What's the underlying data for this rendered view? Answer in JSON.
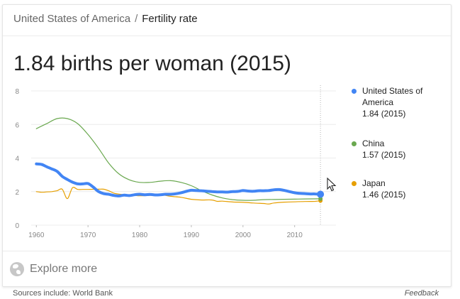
{
  "breadcrumb": {
    "country": "United States of America",
    "separator": "/",
    "topic": "Fertility rate"
  },
  "headline": "1.84 births per woman (2015)",
  "chart_data": {
    "type": "line",
    "title": "",
    "xlabel": "",
    "ylabel": "",
    "xlim": [
      1959,
      2018
    ],
    "ylim": [
      0,
      8
    ],
    "x_ticks": [
      "1960",
      "1970",
      "1980",
      "1990",
      "2000",
      "2010"
    ],
    "y_ticks": [
      "0",
      "2",
      "4",
      "6",
      "8"
    ],
    "grid": true,
    "legend_position": "right",
    "highlight_year": 2015,
    "series": [
      {
        "name": "United States of America",
        "latest": "1.84 (2015)",
        "color": "#4285f4",
        "x": [
          1960,
          1961,
          1962,
          1963,
          1964,
          1965,
          1966,
          1967,
          1968,
          1969,
          1970,
          1971,
          1972,
          1973,
          1974,
          1975,
          1976,
          1977,
          1978,
          1979,
          1980,
          1981,
          1982,
          1983,
          1984,
          1985,
          1986,
          1987,
          1988,
          1989,
          1990,
          1991,
          1992,
          1993,
          1994,
          1995,
          1996,
          1997,
          1998,
          1999,
          2000,
          2001,
          2002,
          2003,
          2004,
          2005,
          2006,
          2007,
          2008,
          2009,
          2010,
          2011,
          2012,
          2013,
          2014,
          2015
        ],
        "y": [
          3.65,
          3.62,
          3.48,
          3.35,
          3.21,
          2.91,
          2.72,
          2.56,
          2.46,
          2.46,
          2.48,
          2.27,
          2.01,
          1.88,
          1.84,
          1.77,
          1.74,
          1.79,
          1.76,
          1.81,
          1.84,
          1.81,
          1.83,
          1.8,
          1.81,
          1.84,
          1.84,
          1.87,
          1.93,
          2.01,
          2.08,
          2.06,
          2.05,
          2.02,
          2.0,
          1.98,
          1.98,
          1.97,
          2.0,
          2.01,
          2.06,
          2.03,
          2.02,
          2.05,
          2.05,
          2.06,
          2.11,
          2.12,
          2.07,
          2.0,
          1.93,
          1.89,
          1.88,
          1.86,
          1.86,
          1.84
        ]
      },
      {
        "name": "China",
        "latest": "1.57 (2015)",
        "color": "#6aa84f",
        "x": [
          1960,
          1962,
          1964,
          1966,
          1968,
          1970,
          1972,
          1974,
          1976,
          1978,
          1980,
          1982,
          1984,
          1986,
          1988,
          1990,
          1992,
          1994,
          1996,
          1998,
          2000,
          2002,
          2004,
          2006,
          2008,
          2010,
          2012,
          2015
        ],
        "y": [
          5.75,
          6.05,
          6.35,
          6.35,
          6.05,
          5.4,
          4.6,
          3.7,
          3.05,
          2.7,
          2.55,
          2.55,
          2.62,
          2.65,
          2.55,
          2.35,
          2.05,
          1.8,
          1.62,
          1.52,
          1.48,
          1.48,
          1.52,
          1.53,
          1.54,
          1.55,
          1.56,
          1.57
        ]
      },
      {
        "name": "Japan",
        "latest": "1.46 (2015)",
        "color": "#e69f00",
        "x": [
          1960,
          1961,
          1962,
          1963,
          1964,
          1965,
          1966,
          1967,
          1968,
          1969,
          1970,
          1972,
          1973,
          1974,
          1975,
          1976,
          1978,
          1980,
          1982,
          1984,
          1986,
          1988,
          1990,
          1992,
          1994,
          1995,
          1996,
          1998,
          2000,
          2002,
          2004,
          2005,
          2006,
          2008,
          2010,
          2012,
          2014,
          2015
        ],
        "y": [
          2.0,
          1.96,
          1.98,
          2.0,
          2.05,
          2.14,
          1.58,
          2.23,
          2.13,
          2.13,
          2.13,
          2.14,
          2.14,
          2.05,
          1.91,
          1.85,
          1.79,
          1.75,
          1.77,
          1.81,
          1.72,
          1.66,
          1.54,
          1.5,
          1.5,
          1.42,
          1.43,
          1.38,
          1.36,
          1.32,
          1.29,
          1.26,
          1.32,
          1.37,
          1.39,
          1.41,
          1.42,
          1.46
        ]
      }
    ]
  },
  "explore": {
    "icon": "globe-icon",
    "label": "Explore more"
  },
  "footer": {
    "sources": "Sources include: World Bank",
    "feedback": "Feedback"
  }
}
